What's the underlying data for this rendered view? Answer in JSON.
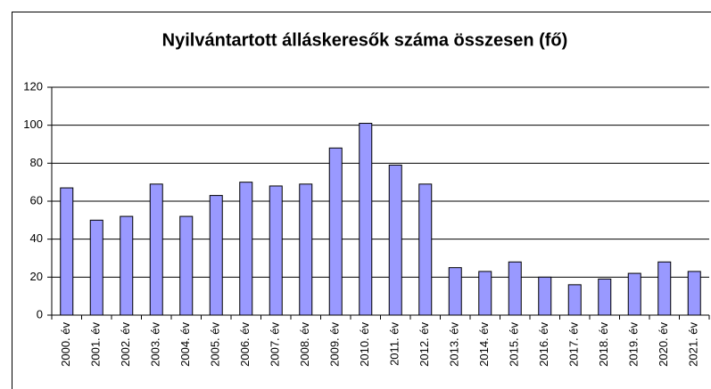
{
  "chart_data": {
    "type": "bar",
    "title": "Nyilvántartott álláskeresők száma összesen (fő)",
    "categories": [
      "2000. év",
      "2001. év",
      "2002. év",
      "2003. év",
      "2004. év",
      "2005. év",
      "2006. év",
      "2007. év",
      "2008. év",
      "2009. év",
      "2010. év",
      "2011. év",
      "2012. év",
      "2013. év",
      "2014. év",
      "2015. év",
      "2016. év",
      "2017. év",
      "2018. év",
      "2019. év",
      "2020. év",
      "2021. év"
    ],
    "values": [
      67,
      50,
      52,
      69,
      52,
      63,
      70,
      68,
      69,
      88,
      101,
      79,
      69,
      25,
      23,
      28,
      20,
      16,
      19,
      22,
      28,
      23
    ],
    "color": "#9999ff",
    "ylim": [
      0,
      120
    ],
    "yticks": [
      0,
      20,
      40,
      60,
      80,
      100,
      120
    ],
    "grid": true
  }
}
